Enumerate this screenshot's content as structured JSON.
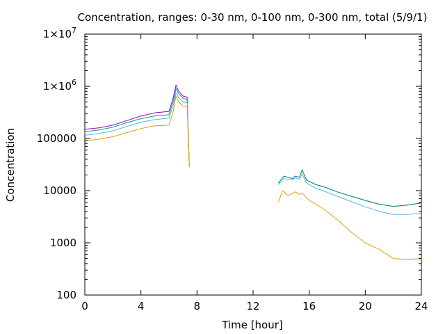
{
  "chart_data": {
    "type": "line",
    "title": "Concentration, ranges: 0-30 nm, 0-100 nm, 0-300 nm, total (5/9/1)",
    "xlabel": "Time [hour]",
    "ylabel": "Concentration",
    "xlim": [
      0,
      24
    ],
    "ylim": [
      100,
      10000000
    ],
    "yscale": "log",
    "grid": false,
    "legend": "none",
    "x_ticks": [
      0,
      4,
      8,
      12,
      16,
      20,
      24
    ],
    "x_tick_labels": [
      "0",
      "4",
      "8",
      "12",
      "16",
      "20",
      "24"
    ],
    "y_ticks": [
      100,
      1000,
      10000,
      100000,
      1000000,
      10000000
    ],
    "y_tick_labels": [
      {
        "base": "100",
        "exp": ""
      },
      {
        "base": "1000",
        "exp": ""
      },
      {
        "base": "10000",
        "exp": ""
      },
      {
        "base": "100000",
        "exp": ""
      },
      {
        "base": "1×10",
        "exp": "6"
      },
      {
        "base": "1×10",
        "exp": "7"
      }
    ],
    "series": [
      {
        "color": "#9400d3",
        "segments": [
          [
            [
              0,
              150000
            ],
            [
              1,
              160000
            ],
            [
              2,
              180000
            ],
            [
              3,
              220000
            ],
            [
              4,
              270000
            ],
            [
              5,
              310000
            ],
            [
              6,
              330000
            ],
            [
              6.3,
              600000
            ],
            [
              6.5,
              1050000
            ],
            [
              6.7,
              800000
            ],
            [
              7,
              650000
            ],
            [
              7.3,
              620000
            ],
            [
              7.45,
              30000
            ]
          ],
          [
            [
              13.8,
              14000
            ],
            [
              14.2,
              19000
            ],
            [
              14.8,
              17000
            ],
            [
              15,
              19000
            ],
            [
              15.3,
              18000
            ],
            [
              15.5,
              25000
            ],
            [
              15.8,
              16000
            ],
            [
              16.5,
              13000
            ],
            [
              17,
              12000
            ],
            [
              18,
              9500
            ],
            [
              19,
              7800
            ],
            [
              20,
              6500
            ],
            [
              21,
              5500
            ],
            [
              22,
              5000
            ],
            [
              23,
              5300
            ],
            [
              24,
              5800
            ]
          ]
        ]
      },
      {
        "color": "#009e73",
        "segments": [
          [
            [
              0,
              135000
            ],
            [
              1,
              145000
            ],
            [
              2,
              165000
            ],
            [
              3,
              200000
            ],
            [
              4,
              240000
            ],
            [
              5,
              270000
            ],
            [
              6,
              285000
            ],
            [
              6.3,
              520000
            ],
            [
              6.5,
              900000
            ],
            [
              6.7,
              720000
            ],
            [
              7,
              590000
            ],
            [
              7.3,
              560000
            ],
            [
              7.45,
              30000
            ]
          ],
          [
            [
              13.8,
              14000
            ],
            [
              14.2,
              19000
            ],
            [
              14.8,
              17000
            ],
            [
              15,
              19000
            ],
            [
              15.3,
              18000
            ],
            [
              15.5,
              25000
            ],
            [
              15.8,
              16000
            ],
            [
              16.5,
              13000
            ],
            [
              17,
              12000
            ],
            [
              18,
              9500
            ],
            [
              19,
              7800
            ],
            [
              20,
              6500
            ],
            [
              21,
              5500
            ],
            [
              22,
              5000
            ],
            [
              23,
              5300
            ],
            [
              24,
              5800
            ]
          ]
        ]
      },
      {
        "color": "#56b4e9",
        "segments": [
          [
            [
              0,
              115000
            ],
            [
              1,
              125000
            ],
            [
              2,
              140000
            ],
            [
              3,
              170000
            ],
            [
              4,
              205000
            ],
            [
              5,
              230000
            ],
            [
              6,
              245000
            ],
            [
              6.3,
              430000
            ],
            [
              6.5,
              750000
            ],
            [
              6.7,
              600000
            ],
            [
              7,
              500000
            ],
            [
              7.3,
              480000
            ],
            [
              7.45,
              29000
            ]
          ],
          [
            [
              13.8,
              13000
            ],
            [
              14.2,
              17000
            ],
            [
              14.8,
              16000
            ],
            [
              15,
              17500
            ],
            [
              15.3,
              16500
            ],
            [
              15.5,
              21000
            ],
            [
              15.8,
              14000
            ],
            [
              16.5,
              11000
            ],
            [
              17,
              10000
            ],
            [
              18,
              7800
            ],
            [
              19,
              6200
            ],
            [
              20,
              4900
            ],
            [
              21,
              4000
            ],
            [
              22,
              3500
            ],
            [
              23,
              3500
            ],
            [
              24,
              3700
            ]
          ]
        ]
      },
      {
        "color": "#e69f00",
        "segments": [
          [
            [
              0,
              90000
            ],
            [
              1,
              97000
            ],
            [
              2,
              108000
            ],
            [
              3,
              130000
            ],
            [
              4,
              155000
            ],
            [
              5,
              175000
            ],
            [
              6,
              180000
            ],
            [
              6.3,
              330000
            ],
            [
              6.5,
              650000
            ],
            [
              6.7,
              500000
            ],
            [
              7,
              420000
            ],
            [
              7.3,
              400000
            ],
            [
              7.45,
              28000
            ]
          ],
          [
            [
              13.8,
              6000
            ],
            [
              14.1,
              10000
            ],
            [
              14.5,
              8000
            ],
            [
              15,
              9500
            ],
            [
              15.3,
              8500
            ],
            [
              15.5,
              9000
            ],
            [
              16,
              6500
            ],
            [
              17,
              4500
            ],
            [
              18,
              2800
            ],
            [
              19,
              1600
            ],
            [
              20,
              1000
            ],
            [
              21,
              750
            ],
            [
              22,
              500
            ],
            [
              23,
              480
            ],
            [
              24,
              500
            ]
          ]
        ]
      }
    ]
  }
}
